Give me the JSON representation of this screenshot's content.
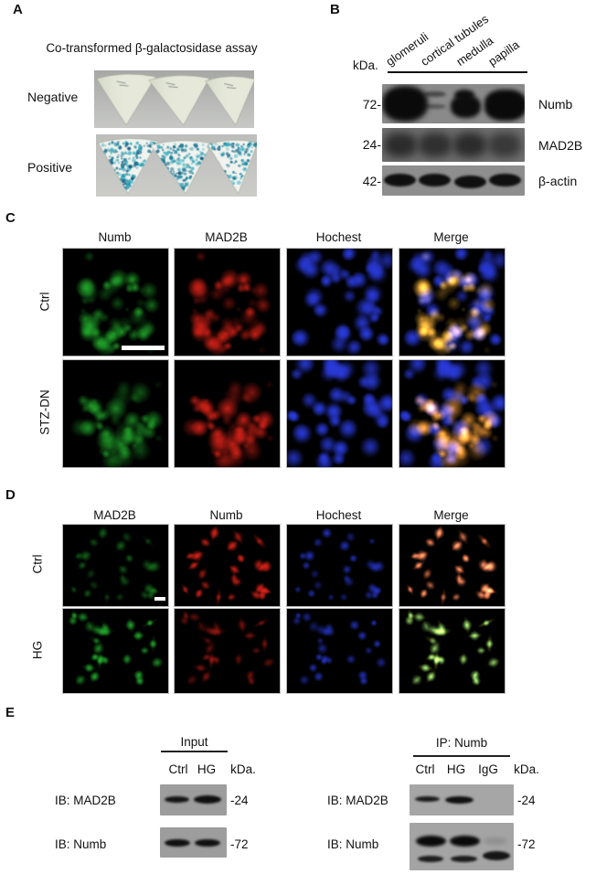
{
  "panels": {
    "A": {
      "label": "A",
      "title": "Co-transformed β-galactosidase assay",
      "rows": [
        {
          "label": "Negative"
        },
        {
          "label": "Positive"
        }
      ]
    },
    "B": {
      "label": "B",
      "kda": "kDa.",
      "lanes": [
        "glomeruli",
        "cortical tubules",
        "medulla",
        "papilla"
      ],
      "blots": [
        {
          "marker": "72-",
          "protein": "Numb"
        },
        {
          "marker": "24-",
          "protein": "MAD2B"
        },
        {
          "marker": "42-",
          "protein": "β-actin"
        }
      ]
    },
    "C": {
      "label": "C",
      "style": "tissue",
      "columns": [
        {
          "label": "Numb",
          "channel": "green"
        },
        {
          "label": "MAD2B",
          "channel": "red"
        },
        {
          "label": "Hochest",
          "channel": "blue"
        },
        {
          "label": "Merge",
          "channel": "merge"
        }
      ],
      "rows": [
        {
          "label": "Ctrl",
          "seed": 11,
          "green": 0.8,
          "red": 0.85
        },
        {
          "label": "STZ-DN",
          "seed": 23,
          "green": 0.7,
          "red": 0.9
        }
      ]
    },
    "D": {
      "label": "D",
      "style": "cells",
      "columns": [
        {
          "label": "MAD2B",
          "channel": "green"
        },
        {
          "label": "Numb",
          "channel": "red"
        },
        {
          "label": "Hochest",
          "channel": "blue"
        },
        {
          "label": "Merge",
          "channel": "merge"
        }
      ],
      "rows": [
        {
          "label": "Ctrl",
          "seed": 41,
          "green": 0.5,
          "red": 0.95
        },
        {
          "label": "HG",
          "seed": 57,
          "green": 1.0,
          "red": 0.4
        }
      ]
    },
    "E": {
      "label": "E",
      "left": {
        "title": "Input",
        "lanes": [
          "Ctrl",
          "HG"
        ],
        "kda": "kDa.",
        "rows": [
          {
            "ib": "IB: MAD2B",
            "marker": "-24"
          },
          {
            "ib": "IB: Numb",
            "marker": "-72"
          }
        ]
      },
      "right": {
        "title": "IP: Numb",
        "lanes": [
          "Ctrl",
          "HG",
          "IgG"
        ],
        "kda": "kDa.",
        "rows": [
          {
            "ib": "IB: MAD2B",
            "marker": "-24"
          },
          {
            "ib": "IB: Numb",
            "marker": "-72"
          }
        ]
      }
    }
  },
  "colors": {
    "fluor_green": "#26bd31",
    "fluor_red": "#e02419",
    "fluor_blue": "#2b3ce0",
    "positive_stain": "#2a96ad",
    "blot_background": "#8c8c8c",
    "band": "#101010"
  }
}
